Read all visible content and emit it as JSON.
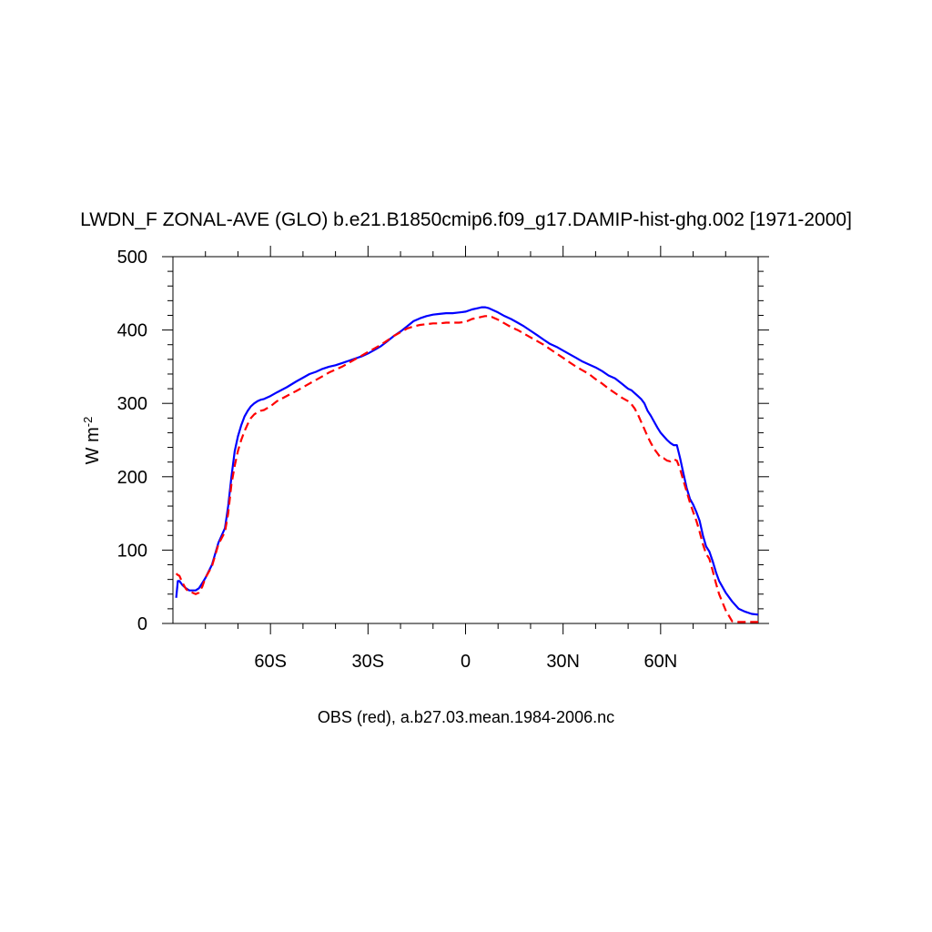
{
  "chart_data": {
    "type": "line",
    "title": "LWDN_F ZONAL-AVE (GLO) b.e21.B1850cmip6.f09_g17.DAMIP-hist-ghg.002 [1971-2000]",
    "xlabel": "OBS (red), a.b27.03.mean.1984-2006.nc",
    "ylabel": "W m",
    "ylabel_superscript": "-2",
    "xlim": [
      -90,
      90
    ],
    "ylim": [
      0,
      500
    ],
    "x_ticks": [
      {
        "value": -60,
        "label": "60S"
      },
      {
        "value": -30,
        "label": "30S"
      },
      {
        "value": 0,
        "label": "0"
      },
      {
        "value": 30,
        "label": "30N"
      },
      {
        "value": 60,
        "label": "60N"
      }
    ],
    "y_ticks": [
      {
        "value": 0,
        "label": "0"
      },
      {
        "value": 100,
        "label": "100"
      },
      {
        "value": 200,
        "label": "200"
      },
      {
        "value": 300,
        "label": "300"
      },
      {
        "value": 400,
        "label": "400"
      },
      {
        "value": 500,
        "label": "500"
      }
    ],
    "series": [
      {
        "color": "#0000ff",
        "dash": "solid",
        "x": [
          -89,
          -88.5,
          -88,
          -87,
          -86,
          -85,
          -84,
          -83,
          -82,
          -81,
          -80,
          -78,
          -76,
          -74,
          -73,
          -72,
          -71,
          -70,
          -69,
          -68,
          -67,
          -66,
          -65,
          -64,
          -63,
          -62,
          -60,
          -58,
          -55,
          -52,
          -50,
          -48,
          -46,
          -44,
          -42,
          -40,
          -38,
          -36,
          -34,
          -32,
          -30,
          -28,
          -26,
          -24,
          -22,
          -20,
          -18,
          -16,
          -14,
          -12,
          -10,
          -8,
          -6,
          -4,
          -2,
          0,
          2,
          4,
          5,
          6,
          7,
          8,
          10,
          12,
          14,
          16,
          18,
          20,
          22,
          24,
          26,
          28,
          30,
          32,
          34,
          36,
          38,
          40,
          42,
          44,
          46,
          48,
          50,
          51,
          52,
          53,
          54,
          55,
          56,
          57,
          58,
          59,
          60,
          61,
          62,
          63,
          64,
          65,
          66,
          67,
          68,
          69,
          70,
          71,
          72,
          73,
          74,
          75,
          76,
          77,
          78,
          80,
          82,
          84,
          86,
          88,
          90
        ],
        "y": [
          35,
          58,
          58,
          52,
          48,
          45,
          45,
          45,
          48,
          55,
          62,
          80,
          110,
          130,
          160,
          200,
          235,
          255,
          270,
          282,
          290,
          296,
          300,
          303,
          305,
          306,
          310,
          315,
          322,
          330,
          335,
          340,
          343,
          347,
          350,
          352,
          355,
          358,
          361,
          364,
          368,
          373,
          378,
          385,
          392,
          398,
          405,
          412,
          416,
          419,
          421,
          422,
          423,
          423,
          424,
          425,
          428,
          430,
          431,
          431,
          430,
          428,
          424,
          419,
          415,
          410,
          405,
          399,
          393,
          387,
          381,
          377,
          372,
          367,
          362,
          357,
          353,
          349,
          344,
          338,
          334,
          327,
          320,
          318,
          314,
          310,
          306,
          300,
          290,
          283,
          275,
          267,
          260,
          255,
          250,
          246,
          243,
          243,
          225,
          205,
          185,
          170,
          162,
          152,
          140,
          120,
          105,
          98,
          85,
          70,
          58,
          42,
          30,
          20,
          16,
          13,
          12
        ]
      },
      {
        "color": "#ff0000",
        "dash": "dashed",
        "x": [
          -89,
          -88.5,
          -88,
          -87,
          -86,
          -85,
          -84,
          -83,
          -82,
          -81,
          -80,
          -78,
          -76,
          -74,
          -73,
          -72,
          -71,
          -70,
          -69,
          -68,
          -67,
          -66,
          -65,
          -64,
          -63,
          -62,
          -60,
          -58,
          -55,
          -52,
          -50,
          -48,
          -46,
          -44,
          -42,
          -40,
          -38,
          -36,
          -34,
          -32,
          -30,
          -28,
          -26,
          -24,
          -22,
          -20,
          -18,
          -16,
          -14,
          -12,
          -10,
          -8,
          -6,
          -4,
          -2,
          0,
          2,
          4,
          5,
          6,
          7,
          8,
          10,
          12,
          14,
          16,
          18,
          20,
          22,
          24,
          26,
          28,
          30,
          32,
          34,
          36,
          38,
          40,
          42,
          44,
          46,
          48,
          50,
          51,
          52,
          53,
          54,
          55,
          56,
          57,
          58,
          59,
          60,
          61,
          62,
          63,
          64,
          65,
          66,
          67,
          68,
          69,
          70,
          71,
          72,
          73,
          74,
          75,
          76,
          77,
          78,
          80,
          82,
          84,
          86,
          88,
          90
        ],
        "y": [
          68,
          66,
          65,
          55,
          47,
          43,
          42,
          40,
          42,
          50,
          62,
          78,
          108,
          125,
          150,
          190,
          215,
          235,
          250,
          262,
          272,
          280,
          285,
          288,
          290,
          291,
          296,
          303,
          310,
          317,
          322,
          327,
          332,
          337,
          342,
          346,
          350,
          355,
          360,
          365,
          370,
          375,
          380,
          386,
          392,
          397,
          402,
          405,
          407,
          408,
          409,
          409,
          410,
          410,
          410,
          411,
          415,
          417,
          418,
          419,
          419,
          418,
          414,
          409,
          404,
          400,
          395,
          390,
          385,
          380,
          374,
          368,
          362,
          356,
          350,
          345,
          340,
          333,
          327,
          320,
          314,
          308,
          303,
          299,
          293,
          285,
          275,
          265,
          255,
          246,
          238,
          232,
          226,
          225,
          222,
          221,
          224,
          222,
          210,
          195,
          180,
          165,
          152,
          140,
          125,
          108,
          95,
          88,
          72,
          55,
          40,
          18,
          3,
          2,
          2,
          2,
          2
        ]
      }
    ]
  }
}
